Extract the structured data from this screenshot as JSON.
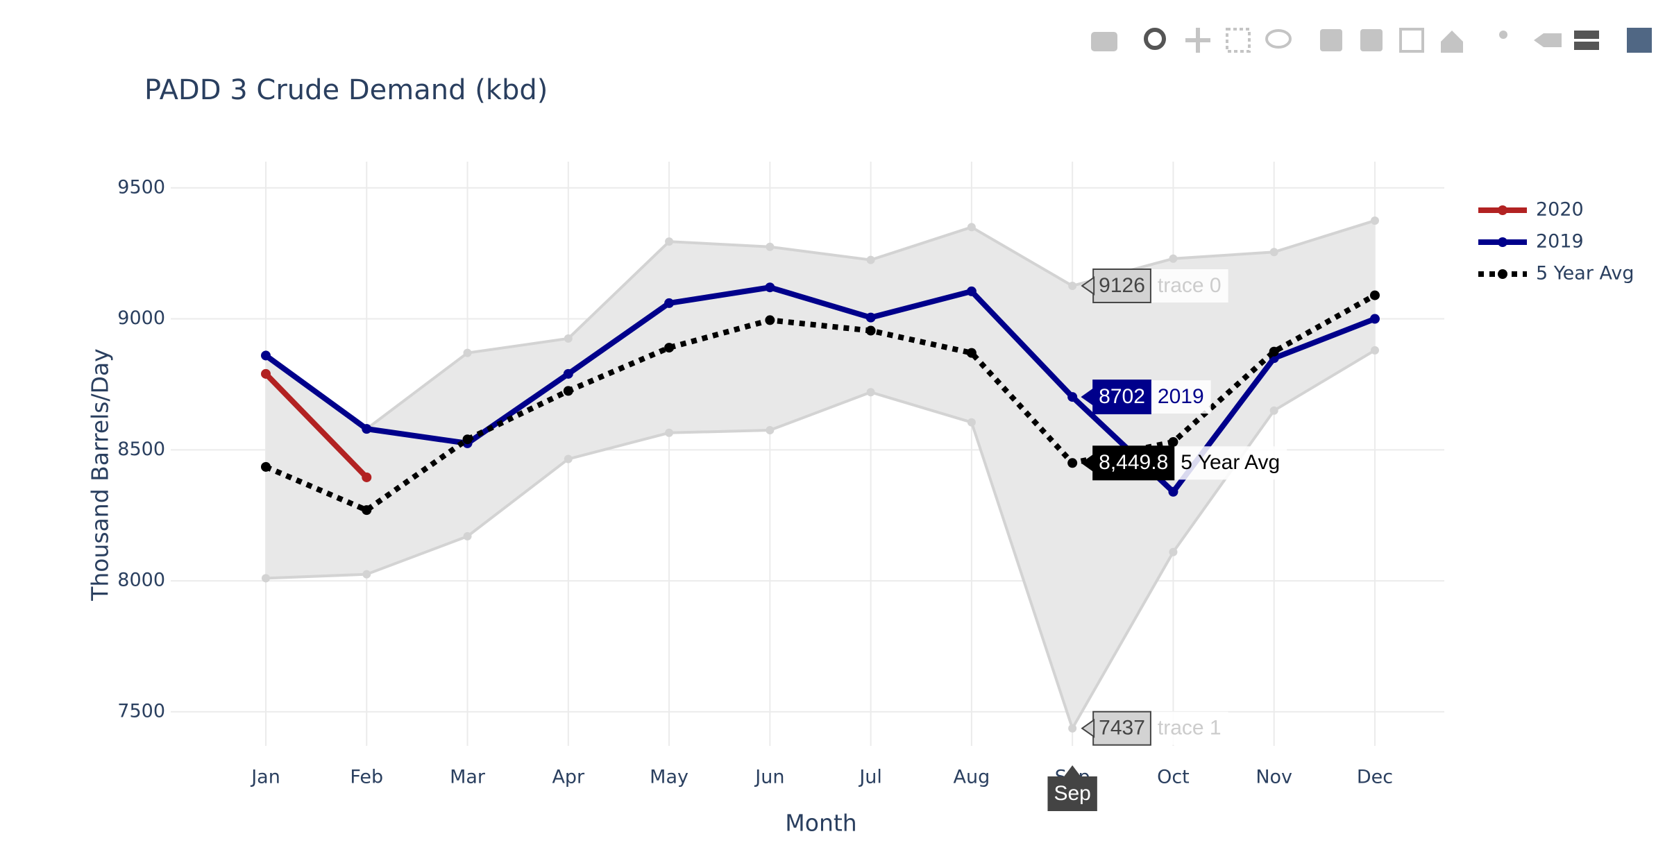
{
  "chart_data": {
    "type": "line",
    "title": "PADD 3 Crude Demand (kbd)",
    "x_label": "Month",
    "y_label": "Thousand Barrels/Day",
    "categories": [
      "Jan",
      "Feb",
      "Mar",
      "Apr",
      "May",
      "Jun",
      "Jul",
      "Aug",
      "Sep",
      "Oct",
      "Nov",
      "Dec"
    ],
    "ylim": [
      7370,
      9600
    ],
    "yticks": [
      7500,
      8000,
      8500,
      9000,
      9500
    ],
    "grid": true,
    "legend": "right",
    "series": [
      {
        "name": "trace 0",
        "color": "#d3d3d3",
        "showlegend": false,
        "values": [
          8860,
          8580,
          8870,
          8925,
          9295,
          9275,
          9225,
          9350,
          9126,
          9230,
          9255,
          9375
        ]
      },
      {
        "name": "trace 1",
        "color": "#d3d3d3",
        "showlegend": false,
        "fill": "#e8e8e8",
        "values": [
          8010,
          8025,
          8170,
          8465,
          8565,
          8575,
          8720,
          8605,
          7437,
          8110,
          8650,
          8880
        ]
      },
      {
        "name": "2020",
        "color": "#b22222",
        "values": [
          8790,
          8395,
          null,
          null,
          null,
          null,
          null,
          null,
          null,
          null,
          null,
          null
        ]
      },
      {
        "name": "2019",
        "color": "#00008b",
        "values": [
          8860,
          8580,
          8525,
          8790,
          9060,
          9120,
          9005,
          9105,
          8702,
          8340,
          8850,
          9000
        ]
      },
      {
        "name": "5 Year Avg",
        "color": "#000000",
        "dash": true,
        "values": [
          8435,
          8270,
          8540,
          8725,
          8890,
          8995,
          8955,
          8870,
          8449.8,
          8530,
          8875,
          9090
        ]
      }
    ],
    "hover": {
      "x": "Sep",
      "items": [
        {
          "name": "trace 0",
          "label": "9126"
        },
        {
          "name": "2019",
          "label": "8702"
        },
        {
          "name": "5 Year Avg",
          "label": "8,449.8"
        },
        {
          "name": "trace 1",
          "label": "7437"
        }
      ]
    }
  }
}
